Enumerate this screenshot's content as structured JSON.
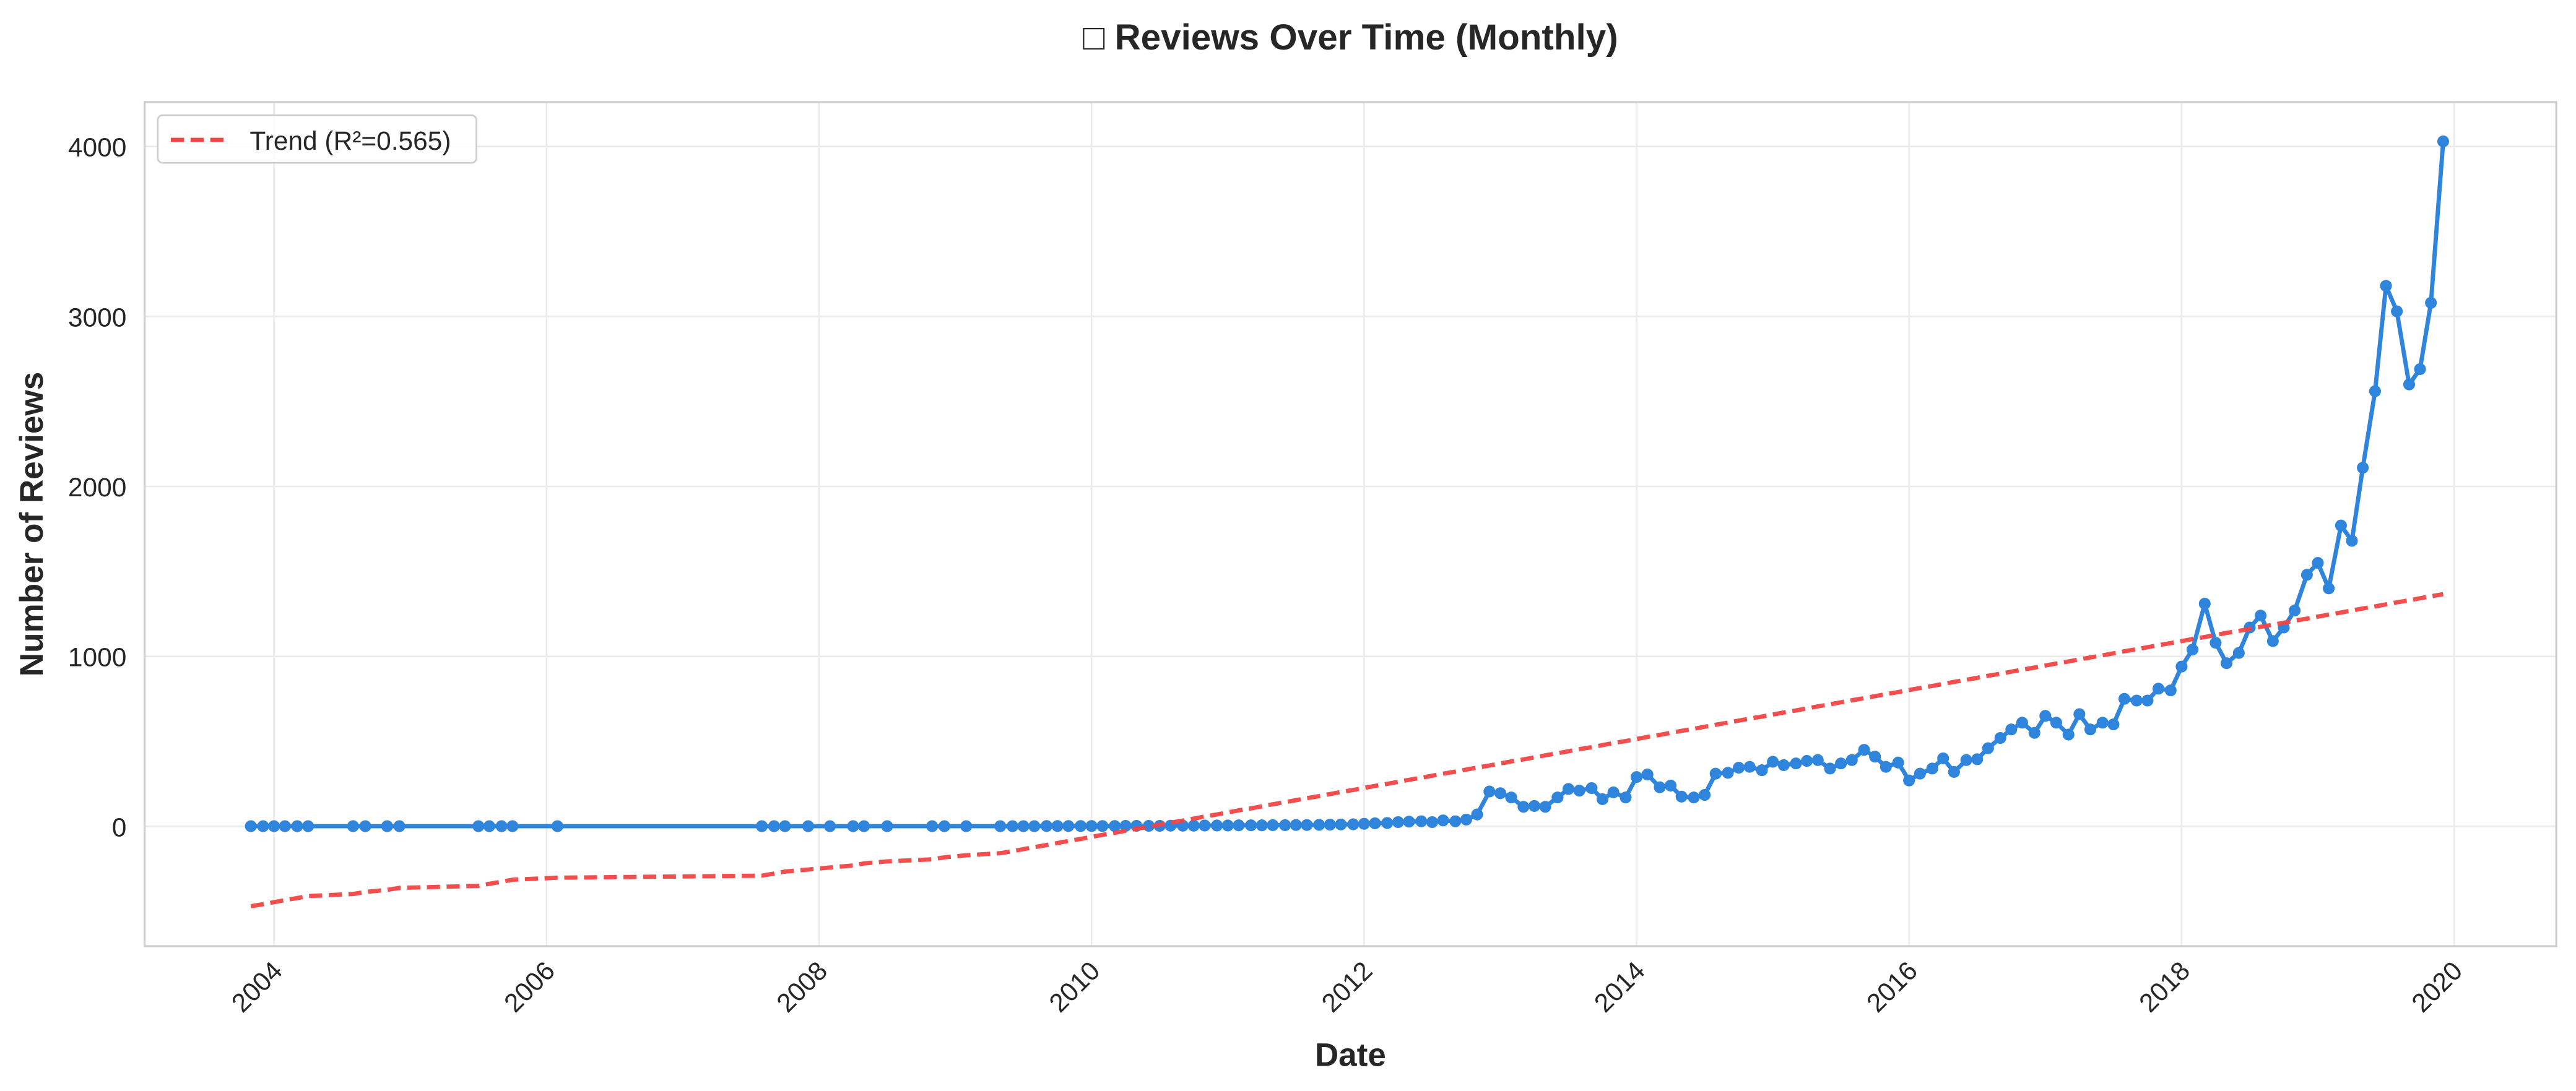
{
  "chart_data": {
    "type": "line",
    "title": "□ Reviews Over Time (Monthly)",
    "x_label": "Date",
    "y_label": "Number of Reviews",
    "x": [
      2003.83,
      2003.92,
      2004,
      2004.08,
      2004.17,
      2004.25,
      2004.58,
      2004.67,
      2004.83,
      2004.92,
      2005.5,
      2005.58,
      2005.67,
      2005.75,
      2006.08,
      2007.58,
      2007.67,
      2007.75,
      2007.92,
      2008.08,
      2008.25,
      2008.33,
      2008.5,
      2008.83,
      2008.92,
      2009.08,
      2009.33,
      2009.42,
      2009.5,
      2009.58,
      2009.67,
      2009.75,
      2009.83,
      2009.92,
      2010,
      2010.08,
      2010.17,
      2010.25,
      2010.33,
      2010.42,
      2010.5,
      2010.58,
      2010.67,
      2010.75,
      2010.83,
      2010.92,
      2011,
      2011.08,
      2011.17,
      2011.25,
      2011.33,
      2011.42,
      2011.5,
      2011.58,
      2011.67,
      2011.75,
      2011.83,
      2011.92,
      2012,
      2012.08,
      2012.17,
      2012.25,
      2012.33,
      2012.42,
      2012.5,
      2012.58,
      2012.67,
      2012.75,
      2012.83,
      2012.92,
      2013,
      2013.08,
      2013.17,
      2013.25,
      2013.33,
      2013.42,
      2013.5,
      2013.58,
      2013.67,
      2013.75,
      2013.83,
      2013.92,
      2014,
      2014.08,
      2014.17,
      2014.25,
      2014.33,
      2014.42,
      2014.5,
      2014.58,
      2014.67,
      2014.75,
      2014.83,
      2014.92,
      2015,
      2015.08,
      2015.17,
      2015.25,
      2015.33,
      2015.42,
      2015.5,
      2015.58,
      2015.67,
      2015.75,
      2015.83,
      2015.92,
      2016,
      2016.08,
      2016.17,
      2016.25,
      2016.33,
      2016.42,
      2016.5,
      2016.58,
      2016.67,
      2016.75,
      2016.83,
      2016.92,
      2017,
      2017.08,
      2017.17,
      2017.25,
      2017.33,
      2017.42,
      2017.5,
      2017.58,
      2017.67,
      2017.75,
      2017.83,
      2017.92,
      2018,
      2018.08,
      2018.17,
      2018.25,
      2018.33,
      2018.42,
      2018.5,
      2018.58,
      2018.67,
      2018.75,
      2018.83,
      2018.92,
      2019,
      2019.08,
      2019.17,
      2019.25,
      2019.33,
      2019.42,
      2019.5,
      2019.58,
      2019.67,
      2019.75,
      2019.83,
      2019.92
    ],
    "series": [
      {
        "color": "#2f84dc",
        "markers": true,
        "linestyle": "solid",
        "values": [
          1,
          1,
          1,
          1,
          1,
          1,
          1,
          1,
          1,
          1,
          1,
          1,
          1,
          1,
          1,
          1,
          1,
          1,
          1,
          1,
          1,
          1,
          1,
          1,
          1,
          1,
          1,
          1,
          1,
          1,
          2,
          2,
          2,
          2,
          2,
          2,
          2,
          3,
          3,
          3,
          3,
          4,
          4,
          4,
          5,
          5,
          5,
          6,
          6,
          6,
          7,
          7,
          8,
          8,
          9,
          10,
          11,
          12,
          15,
          18,
          20,
          25,
          28,
          30,
          25,
          35,
          30,
          40,
          70,
          205,
          195,
          170,
          115,
          120,
          115,
          170,
          220,
          210,
          225,
          160,
          200,
          170,
          290,
          305,
          230,
          240,
          175,
          170,
          185,
          310,
          315,
          345,
          350,
          330,
          380,
          360,
          370,
          385,
          390,
          340,
          370,
          390,
          450,
          410,
          350,
          375,
          270,
          310,
          340,
          400,
          320,
          390,
          395,
          460,
          520,
          570,
          610,
          550,
          650,
          610,
          540,
          660,
          570,
          610,
          600,
          750,
          740,
          740,
          810,
          800,
          940,
          1040,
          1310,
          1080,
          960,
          1020,
          1170,
          1240,
          1090,
          1170,
          1270,
          1480,
          1550,
          1400,
          1770,
          1680,
          2110,
          2560,
          3180,
          3030,
          2600,
          2690,
          3080,
          4030
        ]
      },
      {
        "name": "Trend (R²=0.565)",
        "color": "#f24444",
        "markers": false,
        "linestyle": "dashed",
        "values": [
          -470,
          -458,
          -446,
          -434,
          -422,
          -410,
          -398,
          -386,
          -374,
          -362,
          -350,
          -338,
          -326,
          -314,
          -302,
          -290,
          -278,
          -266,
          -254,
          -242,
          -230,
          -218,
          -206,
          -194,
          -182,
          -170,
          -158,
          -146,
          -134,
          -122,
          -110,
          -98,
          -86,
          -74,
          -62,
          -50,
          -38,
          -26,
          -14,
          -2,
          10,
          22,
          34,
          46,
          58,
          70,
          82,
          94,
          106,
          118,
          130,
          142,
          154,
          166,
          178,
          190,
          202,
          214,
          226,
          238,
          250,
          262,
          274,
          286,
          298,
          310,
          322,
          334,
          346,
          358,
          370,
          382,
          394,
          406,
          418,
          430,
          442,
          454,
          466,
          478,
          490,
          502,
          514,
          526,
          538,
          550,
          562,
          574,
          586,
          598,
          610,
          622,
          634,
          646,
          658,
          670,
          682,
          694,
          706,
          718,
          730,
          742,
          754,
          766,
          778,
          790,
          802,
          814,
          826,
          838,
          850,
          862,
          874,
          886,
          898,
          910,
          922,
          934,
          946,
          958,
          970,
          982,
          994,
          1006,
          1018,
          1030,
          1042,
          1054,
          1066,
          1078,
          1090,
          1102,
          1114,
          1126,
          1138,
          1150,
          1162,
          1174,
          1186,
          1198,
          1210,
          1222,
          1234,
          1246,
          1258,
          1270,
          1282,
          1294,
          1306,
          1318,
          1330,
          1342,
          1354,
          1366
        ]
      }
    ],
    "xlim": [
      2003.05,
      2020.75
    ],
    "xticks": [
      2004,
      2006,
      2008,
      2010,
      2012,
      2014,
      2016,
      2018,
      2020
    ],
    "ylim": [
      -705,
      4261
    ],
    "yticks": [
      0,
      1000,
      2000,
      3000,
      4000
    ],
    "grid": true,
    "legend": "upper left"
  }
}
